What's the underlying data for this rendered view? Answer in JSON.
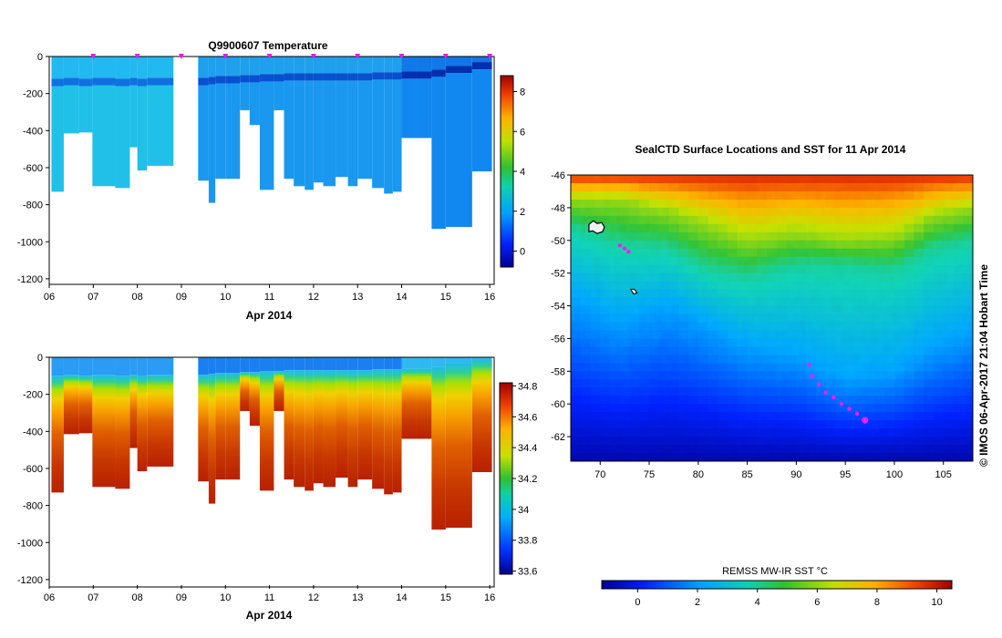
{
  "chart_data": [
    {
      "type": "heatmap",
      "title": "Q9900607  Temperature",
      "xlabel": "Apr 2014",
      "x_tick_labels": [
        "06",
        "07",
        "08",
        "09",
        "10",
        "11",
        "12",
        "13",
        "14",
        "15",
        "16"
      ],
      "xlim": [
        6,
        16.1
      ],
      "y_tick_labels": [
        "0",
        "-200",
        "-400",
        "-600",
        "-800",
        "-1000",
        "-1200"
      ],
      "ylim": [
        -1230,
        0
      ],
      "colorbar": {
        "ticks": [
          "0",
          "2",
          "4",
          "6",
          "8"
        ],
        "range": [
          -0.8,
          8.8
        ]
      },
      "profile_marker_days": [
        7,
        8,
        9,
        10,
        11,
        12,
        13,
        14,
        15,
        16
      ],
      "profiles": [
        {
          "x0": 6.05,
          "x1": 6.33,
          "max_depth": 730,
          "cold_layer_depth": 130
        },
        {
          "x0": 6.33,
          "x1": 6.68,
          "max_depth": 415,
          "cold_layer_depth": 125
        },
        {
          "x0": 6.68,
          "x1": 6.98,
          "max_depth": 410,
          "cold_layer_depth": 130
        },
        {
          "x0": 6.98,
          "x1": 7.5,
          "max_depth": 700,
          "cold_layer_depth": 125
        },
        {
          "x0": 7.5,
          "x1": 7.83,
          "max_depth": 710,
          "cold_layer_depth": 130
        },
        {
          "x0": 7.83,
          "x1": 8.0,
          "max_depth": 490,
          "cold_layer_depth": 125
        },
        {
          "x0": 8.0,
          "x1": 8.22,
          "max_depth": 615,
          "cold_layer_depth": 130
        },
        {
          "x0": 8.22,
          "x1": 8.82,
          "max_depth": 590,
          "cold_layer_depth": 125
        },
        {
          "x0": 9.38,
          "x1": 9.62,
          "max_depth": 670,
          "cold_layer_depth": 125
        },
        {
          "x0": 9.62,
          "x1": 9.77,
          "max_depth": 790,
          "cold_layer_depth": 120
        },
        {
          "x0": 9.77,
          "x1": 10.0,
          "max_depth": 660,
          "cold_layer_depth": 115
        },
        {
          "x0": 10.0,
          "x1": 10.33,
          "max_depth": 660,
          "cold_layer_depth": 115
        },
        {
          "x0": 10.33,
          "x1": 10.55,
          "max_depth": 290,
          "cold_layer_depth": 110
        },
        {
          "x0": 10.55,
          "x1": 10.78,
          "max_depth": 370,
          "cold_layer_depth": 110
        },
        {
          "x0": 10.78,
          "x1": 11.1,
          "max_depth": 720,
          "cold_layer_depth": 105
        },
        {
          "x0": 11.1,
          "x1": 11.33,
          "max_depth": 290,
          "cold_layer_depth": 105
        },
        {
          "x0": 11.33,
          "x1": 11.55,
          "max_depth": 660,
          "cold_layer_depth": 100
        },
        {
          "x0": 11.55,
          "x1": 11.8,
          "max_depth": 700,
          "cold_layer_depth": 100
        },
        {
          "x0": 11.8,
          "x1": 12.0,
          "max_depth": 720,
          "cold_layer_depth": 100
        },
        {
          "x0": 12.0,
          "x1": 12.22,
          "max_depth": 680,
          "cold_layer_depth": 100
        },
        {
          "x0": 12.22,
          "x1": 12.5,
          "max_depth": 700,
          "cold_layer_depth": 100
        },
        {
          "x0": 12.5,
          "x1": 12.78,
          "max_depth": 650,
          "cold_layer_depth": 100
        },
        {
          "x0": 12.78,
          "x1": 13.0,
          "max_depth": 700,
          "cold_layer_depth": 100
        },
        {
          "x0": 13.0,
          "x1": 13.33,
          "max_depth": 660,
          "cold_layer_depth": 100
        },
        {
          "x0": 13.33,
          "x1": 13.6,
          "max_depth": 710,
          "cold_layer_depth": 95
        },
        {
          "x0": 13.6,
          "x1": 13.8,
          "max_depth": 740,
          "cold_layer_depth": 95
        },
        {
          "x0": 13.8,
          "x1": 14.0,
          "max_depth": 730,
          "cold_layer_depth": 95
        },
        {
          "x0": 14.0,
          "x1": 14.33,
          "max_depth": 440,
          "cold_layer_depth": 90
        },
        {
          "x0": 14.33,
          "x1": 14.68,
          "max_depth": 440,
          "cold_layer_depth": 90
        },
        {
          "x0": 14.68,
          "x1": 15.0,
          "max_depth": 930,
          "cold_layer_depth": 80
        },
        {
          "x0": 15.0,
          "x1": 15.6,
          "max_depth": 920,
          "cold_layer_depth": 60
        },
        {
          "x0": 15.6,
          "x1": 16.05,
          "max_depth": 620,
          "cold_layer_depth": 40
        }
      ]
    },
    {
      "type": "heatmap",
      "xlabel": "Apr 2014",
      "x_tick_labels": [
        "06",
        "07",
        "08",
        "09",
        "10",
        "11",
        "12",
        "13",
        "14",
        "15",
        "16"
      ],
      "xlim": [
        6,
        16.1
      ],
      "y_tick_labels": [
        "0",
        "-200",
        "-400",
        "-600",
        "-800",
        "-1000",
        "-1200"
      ],
      "ylim": [
        -1230,
        0
      ],
      "colorbar": {
        "ticks": [
          "33.6",
          "33.8",
          "34",
          "34.2",
          "34.4",
          "34.6",
          "34.8"
        ],
        "range": [
          33.58,
          34.82
        ]
      },
      "profiles_ref": 0
    },
    {
      "type": "heatmap",
      "title": "SealCTD Surface Locations and SST for 11 Apr 2014",
      "x_tick_labels": [
        "70",
        "75",
        "80",
        "85",
        "90",
        "95",
        "100",
        "105"
      ],
      "xlim": [
        67,
        108
      ],
      "y_tick_labels": [
        "-46",
        "-48",
        "-50",
        "-52",
        "-54",
        "-56",
        "-58",
        "-60",
        "-62"
      ],
      "ylim": [
        -63.5,
        -46
      ],
      "side_label": "©  IMOS 06-Apr-2017 21:04 Hobart Time",
      "colorbar": {
        "title": "REMSS MW-IR SST °C",
        "ticks": [
          "0",
          "2",
          "4",
          "6",
          "8",
          "10"
        ],
        "range": [
          -1.2,
          10.5
        ]
      },
      "sst_front": [
        {
          "lon": 67,
          "t6": -47.5,
          "t4": -49.2,
          "t2": -53.5
        },
        {
          "lon": 72,
          "t6": -47.5,
          "t4": -50.2,
          "t2": -55.0
        },
        {
          "lon": 77,
          "t6": -48.2,
          "t4": -50.5,
          "t2": -54.0
        },
        {
          "lon": 81,
          "t6": -49.0,
          "t4": -51.8,
          "t2": -55.2
        },
        {
          "lon": 85,
          "t6": -50.0,
          "t4": -52.2,
          "t2": -56.5
        },
        {
          "lon": 90,
          "t6": -49.5,
          "t4": -51.5,
          "t2": -57.0
        },
        {
          "lon": 95,
          "t6": -50.0,
          "t4": -51.5,
          "t2": -58.5
        },
        {
          "lon": 100,
          "t6": -49.8,
          "t4": -51.8,
          "t2": -58.0
        },
        {
          "lon": 104,
          "t6": -48.5,
          "t4": -50.5,
          "t2": -56.5
        },
        {
          "lon": 108,
          "t6": -48.0,
          "t4": -50.0,
          "t2": -55.5
        }
      ],
      "track_points": [
        {
          "lon": 72.0,
          "lat": -50.3
        },
        {
          "lon": 72.5,
          "lat": -50.5
        },
        {
          "lon": 72.9,
          "lat": -50.7
        },
        {
          "lon": 91.3,
          "lat": -57.6
        },
        {
          "lon": 91.6,
          "lat": -58.3
        },
        {
          "lon": 92.3,
          "lat": -58.8
        },
        {
          "lon": 93.0,
          "lat": -59.3
        },
        {
          "lon": 93.8,
          "lat": -59.6
        },
        {
          "lon": 94.6,
          "lat": -60.0
        },
        {
          "lon": 95.4,
          "lat": -60.3
        },
        {
          "lon": 96.2,
          "lat": -60.6
        },
        {
          "lon": 97.0,
          "lat": -61.0
        }
      ],
      "current_position": {
        "lon": 97.0,
        "lat": -61.0
      },
      "islands": [
        {
          "name": "kerguelen",
          "lon": 69.6,
          "lat": -49.3
        },
        {
          "name": "heard",
          "lon": 73.4,
          "lat": -53.1
        }
      ]
    }
  ]
}
